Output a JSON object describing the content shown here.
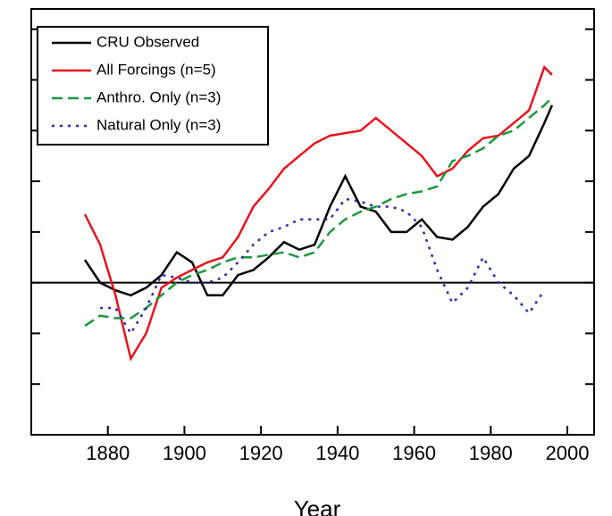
{
  "chart_data": {
    "type": "line",
    "x_label": "Year",
    "x": [
      1874,
      1878,
      1882,
      1886,
      1890,
      1894,
      1898,
      1902,
      1906,
      1910,
      1914,
      1918,
      1922,
      1926,
      1930,
      1934,
      1938,
      1942,
      1946,
      1950,
      1954,
      1958,
      1962,
      1966,
      1970,
      1974,
      1978,
      1982,
      1986,
      1990,
      1994,
      1996
    ],
    "series": [
      {
        "name": "CRU Observed",
        "color": "#000000",
        "dash": "none",
        "values": [
          0.09,
          0.0,
          -0.03,
          -0.05,
          -0.02,
          0.03,
          0.12,
          0.08,
          -0.05,
          -0.05,
          0.03,
          0.05,
          0.1,
          0.16,
          0.13,
          0.15,
          0.3,
          0.42,
          0.3,
          0.28,
          0.2,
          0.2,
          0.25,
          0.18,
          0.17,
          0.22,
          0.3,
          0.35,
          0.45,
          0.5,
          0.63,
          0.7
        ]
      },
      {
        "name": "All Forcings (n=5)",
        "color": "#e8141c",
        "dash": "none",
        "values": [
          0.27,
          0.15,
          -0.05,
          -0.3,
          -0.2,
          -0.02,
          0.02,
          0.05,
          0.08,
          0.1,
          0.18,
          0.3,
          0.37,
          0.45,
          0.5,
          0.55,
          0.58,
          0.59,
          0.6,
          0.65,
          0.6,
          0.55,
          0.5,
          0.42,
          0.45,
          0.52,
          0.57,
          0.58,
          0.63,
          0.68,
          0.85,
          0.82
        ]
      },
      {
        "name": "Anthro. Only (n=3)",
        "color": "#1a9a3a",
        "dash": "12 6",
        "values": [
          -0.17,
          -0.13,
          -0.14,
          -0.14,
          -0.1,
          -0.05,
          0.0,
          0.03,
          0.05,
          0.08,
          0.1,
          0.1,
          0.11,
          0.12,
          0.1,
          0.12,
          0.2,
          0.25,
          0.28,
          0.3,
          0.33,
          0.35,
          0.36,
          0.38,
          0.48,
          0.5,
          0.53,
          0.58,
          0.6,
          0.65,
          0.7,
          0.73
        ]
      },
      {
        "name": "Natural Only (n=3)",
        "color": "#2a2ab0",
        "dash": "3 6",
        "values": [
          null,
          -0.1,
          -0.1,
          -0.2,
          -0.1,
          0.03,
          0.02,
          0.0,
          0.0,
          0.02,
          0.08,
          0.15,
          0.2,
          0.22,
          0.25,
          0.25,
          0.25,
          0.33,
          0.32,
          0.3,
          0.3,
          0.28,
          0.22,
          0.05,
          -0.08,
          -0.02,
          0.1,
          0.0,
          -0.05,
          -0.12,
          -0.03,
          null
        ]
      }
    ],
    "xlim": [
      1860,
      2007
    ],
    "xticks": [
      1880,
      1900,
      1920,
      1940,
      1960,
      1980,
      2000
    ],
    "ylim": [
      -0.6,
      1.08
    ],
    "yticks": [
      -0.4,
      -0.2,
      0,
      0.2,
      0.4,
      0.6,
      0.8,
      1.0
    ],
    "zero_line": true,
    "legend": "upper-left"
  }
}
